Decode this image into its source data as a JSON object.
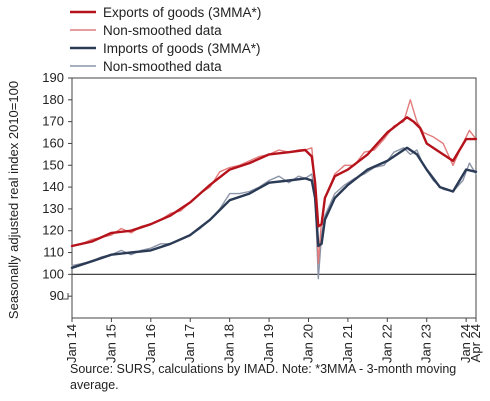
{
  "chart_data": {
    "type": "line",
    "ylabel": "Seasonally adjusted real index 2010=100",
    "xlabel": "",
    "ylim": [
      80,
      190
    ],
    "yticks": [
      90,
      100,
      110,
      120,
      130,
      140,
      150,
      160,
      170,
      180,
      190
    ],
    "baseline": 100,
    "grid": false,
    "legend_position": "top-left",
    "x_range": [
      "2014-01",
      "2024-04"
    ],
    "x_tick_labels": [
      {
        "label": "Jan 14",
        "x": "2014-01"
      },
      {
        "label": "Jan 15",
        "x": "2015-01"
      },
      {
        "label": "Jan 16",
        "x": "2016-01"
      },
      {
        "label": "Jan 17",
        "x": "2017-01"
      },
      {
        "label": "Jan 18",
        "x": "2018-01"
      },
      {
        "label": "Jan 19",
        "x": "2019-01"
      },
      {
        "label": "Jan 20",
        "x": "2020-01"
      },
      {
        "label": "Jan 21",
        "x": "2021-01"
      },
      {
        "label": "Jan 22",
        "x": "2022-01"
      },
      {
        "label": "Jan 23",
        "x": "2023-01"
      },
      {
        "label": "Jan 24",
        "x": "2024-01"
      },
      {
        "label": "Apr 24",
        "x": "2024-04"
      }
    ],
    "series": [
      {
        "name": "Exports of goods (3MMA*)",
        "color": "#b5121b",
        "style": "thick",
        "points": [
          [
            "2014-01",
            113
          ],
          [
            "2014-07",
            115
          ],
          [
            "2015-01",
            119
          ],
          [
            "2015-07",
            120
          ],
          [
            "2016-01",
            123
          ],
          [
            "2016-07",
            127
          ],
          [
            "2017-01",
            133
          ],
          [
            "2017-07",
            141
          ],
          [
            "2018-01",
            148
          ],
          [
            "2018-07",
            151
          ],
          [
            "2019-01",
            155
          ],
          [
            "2019-07",
            156
          ],
          [
            "2019-12",
            157
          ],
          [
            "2020-02",
            154
          ],
          [
            "2020-03",
            142
          ],
          [
            "2020-04",
            122
          ],
          [
            "2020-05",
            123
          ],
          [
            "2020-06",
            135
          ],
          [
            "2020-09",
            145
          ],
          [
            "2021-01",
            148
          ],
          [
            "2021-07",
            155
          ],
          [
            "2022-01",
            165
          ],
          [
            "2022-07",
            172
          ],
          [
            "2022-09",
            170
          ],
          [
            "2022-11",
            167
          ],
          [
            "2023-01",
            160
          ],
          [
            "2023-05",
            156
          ],
          [
            "2023-09",
            152
          ],
          [
            "2024-01",
            162
          ],
          [
            "2024-04",
            162
          ]
        ]
      },
      {
        "name": "Non-smoothed data",
        "color": "#e27b7b",
        "style": "thin",
        "points": [
          [
            "2014-01",
            113
          ],
          [
            "2014-04",
            114
          ],
          [
            "2014-07",
            116
          ],
          [
            "2014-10",
            117
          ],
          [
            "2015-01",
            118
          ],
          [
            "2015-04",
            121
          ],
          [
            "2015-07",
            119
          ],
          [
            "2015-10",
            122
          ],
          [
            "2016-01",
            123
          ],
          [
            "2016-04",
            125
          ],
          [
            "2016-07",
            128
          ],
          [
            "2016-10",
            129
          ],
          [
            "2017-01",
            133
          ],
          [
            "2017-04",
            137
          ],
          [
            "2017-07",
            140
          ],
          [
            "2017-10",
            147
          ],
          [
            "2018-01",
            149
          ],
          [
            "2018-04",
            150
          ],
          [
            "2018-07",
            152
          ],
          [
            "2018-10",
            154
          ],
          [
            "2019-01",
            155
          ],
          [
            "2019-04",
            157
          ],
          [
            "2019-07",
            156
          ],
          [
            "2019-10",
            157
          ],
          [
            "2019-12",
            157
          ],
          [
            "2020-02",
            158
          ],
          [
            "2020-03",
            142
          ],
          [
            "2020-04",
            105
          ],
          [
            "2020-05",
            125
          ],
          [
            "2020-06",
            135
          ],
          [
            "2020-09",
            146
          ],
          [
            "2020-12",
            150
          ],
          [
            "2021-03",
            150
          ],
          [
            "2021-06",
            156
          ],
          [
            "2021-09",
            157
          ],
          [
            "2021-12",
            162
          ],
          [
            "2022-03",
            168
          ],
          [
            "2022-06",
            170
          ],
          [
            "2022-08",
            180
          ],
          [
            "2022-10",
            170
          ],
          [
            "2022-12",
            165
          ],
          [
            "2023-03",
            163
          ],
          [
            "2023-06",
            160
          ],
          [
            "2023-09",
            150
          ],
          [
            "2023-12",
            160
          ],
          [
            "2024-02",
            166
          ],
          [
            "2024-04",
            162
          ]
        ]
      },
      {
        "name": "Imports of goods (3MMA*)",
        "color": "#2b3a55",
        "style": "thick",
        "points": [
          [
            "2014-01",
            103
          ],
          [
            "2014-07",
            106
          ],
          [
            "2015-01",
            109
          ],
          [
            "2015-07",
            110
          ],
          [
            "2016-01",
            111
          ],
          [
            "2016-07",
            114
          ],
          [
            "2017-01",
            118
          ],
          [
            "2017-07",
            125
          ],
          [
            "2018-01",
            134
          ],
          [
            "2018-07",
            137
          ],
          [
            "2019-01",
            142
          ],
          [
            "2019-07",
            143
          ],
          [
            "2019-12",
            144
          ],
          [
            "2020-02",
            143
          ],
          [
            "2020-03",
            135
          ],
          [
            "2020-04",
            113
          ],
          [
            "2020-05",
            114
          ],
          [
            "2020-06",
            125
          ],
          [
            "2020-09",
            135
          ],
          [
            "2021-01",
            141
          ],
          [
            "2021-07",
            148
          ],
          [
            "2022-01",
            152
          ],
          [
            "2022-07",
            158
          ],
          [
            "2022-10",
            155
          ],
          [
            "2023-01",
            148
          ],
          [
            "2023-05",
            140
          ],
          [
            "2023-09",
            138
          ],
          [
            "2024-01",
            148
          ],
          [
            "2024-04",
            147
          ]
        ]
      },
      {
        "name": "Non-smoothed data",
        "color": "#8c95a8",
        "style": "thin",
        "points": [
          [
            "2014-01",
            104
          ],
          [
            "2014-04",
            105
          ],
          [
            "2014-07",
            106
          ],
          [
            "2014-10",
            108
          ],
          [
            "2015-01",
            109
          ],
          [
            "2015-04",
            111
          ],
          [
            "2015-07",
            109
          ],
          [
            "2015-10",
            111
          ],
          [
            "2016-01",
            112
          ],
          [
            "2016-04",
            114
          ],
          [
            "2016-07",
            114
          ],
          [
            "2016-10",
            116
          ],
          [
            "2017-01",
            118
          ],
          [
            "2017-04",
            121
          ],
          [
            "2017-07",
            125
          ],
          [
            "2017-10",
            130
          ],
          [
            "2018-01",
            137
          ],
          [
            "2018-04",
            137
          ],
          [
            "2018-07",
            138
          ],
          [
            "2018-10",
            140
          ],
          [
            "2019-01",
            143
          ],
          [
            "2019-04",
            145
          ],
          [
            "2019-07",
            142
          ],
          [
            "2019-10",
            145
          ],
          [
            "2019-12",
            144
          ],
          [
            "2020-02",
            146
          ],
          [
            "2020-03",
            136
          ],
          [
            "2020-04",
            98
          ],
          [
            "2020-05",
            118
          ],
          [
            "2020-06",
            127
          ],
          [
            "2020-09",
            137
          ],
          [
            "2020-12",
            141
          ],
          [
            "2021-03",
            144
          ],
          [
            "2021-06",
            146
          ],
          [
            "2021-09",
            149
          ],
          [
            "2021-12",
            150
          ],
          [
            "2022-03",
            156
          ],
          [
            "2022-06",
            158
          ],
          [
            "2022-08",
            155
          ],
          [
            "2022-10",
            157
          ],
          [
            "2022-12",
            150
          ],
          [
            "2023-03",
            143
          ],
          [
            "2023-06",
            139
          ],
          [
            "2023-09",
            138
          ],
          [
            "2023-12",
            143
          ],
          [
            "2024-02",
            151
          ],
          [
            "2024-04",
            146
          ]
        ]
      }
    ]
  },
  "footer": {
    "source_note": "Source: SURS, calculations by IMAD. Note: *3MMA - 3-month moving average."
  }
}
